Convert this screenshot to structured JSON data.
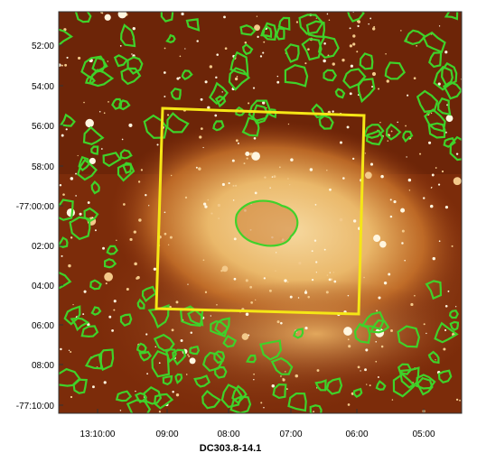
{
  "figure": {
    "y_tick_labels": [
      "52:00",
      "54:00",
      "56:00",
      "58:00",
      "-77:00:00",
      "02:00",
      "04:00",
      "06:00",
      "08:00",
      "-77:10:00"
    ],
    "x_tick_labels": [
      "13:10:00",
      "09:00",
      "08:00",
      "07:00",
      "06:00",
      "05:00"
    ],
    "x_axis_title": "DC303.8-14.1"
  }
}
